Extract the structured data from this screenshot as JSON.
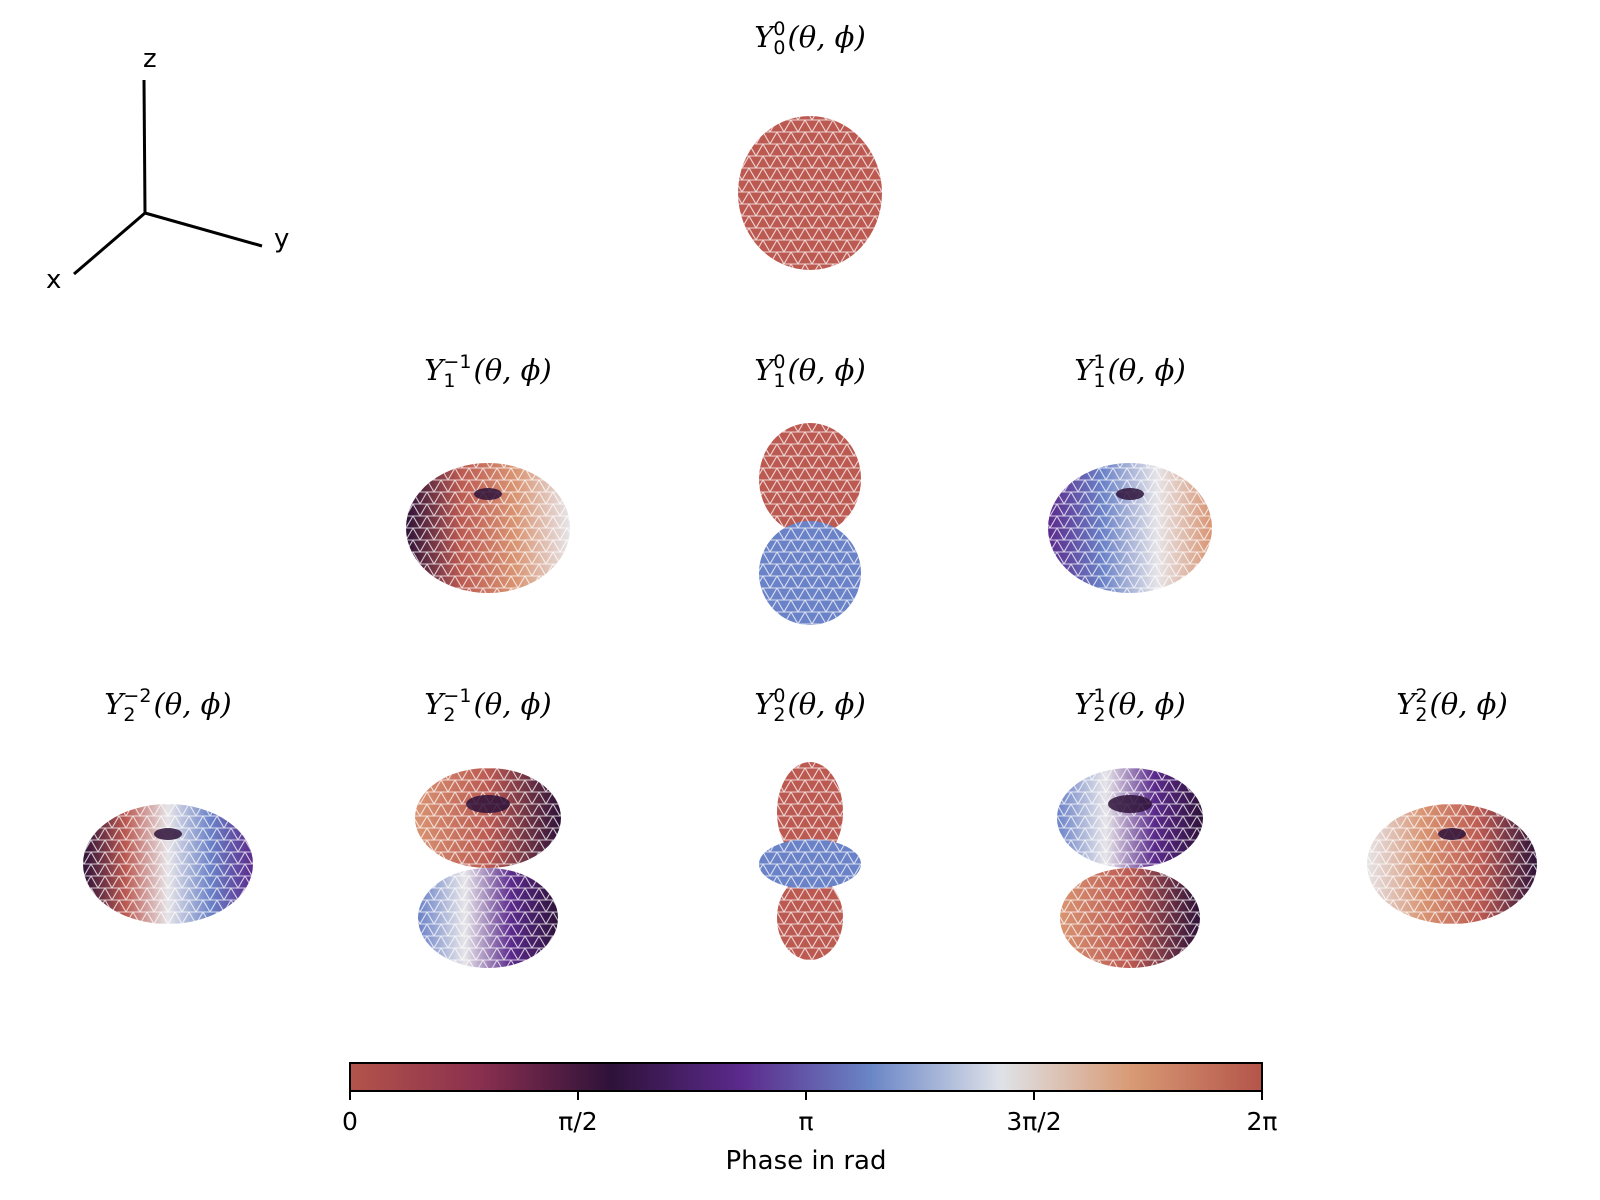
{
  "axes_triad": {
    "x_label": "x",
    "y_label": "y",
    "z_label": "z"
  },
  "harmonics": [
    {
      "id": "l0m0",
      "Y": "Y",
      "sup": "0",
      "sub": "0",
      "args": "(θ, ϕ)",
      "shape": "sphere"
    },
    {
      "id": "l1m-1",
      "Y": "Y",
      "sup": "−1",
      "sub": "1",
      "args": "(θ, ϕ)",
      "shape": "torus"
    },
    {
      "id": "l1m0",
      "Y": "Y",
      "sup": "0",
      "sub": "1",
      "args": "(θ, ϕ)",
      "shape": "dumbbell"
    },
    {
      "id": "l1m1",
      "Y": "Y",
      "sup": "1",
      "sub": "1",
      "args": "(θ, ϕ)",
      "shape": "torus"
    },
    {
      "id": "l2m-2",
      "Y": "Y",
      "sup": "−2",
      "sub": "2",
      "args": "(θ, ϕ)",
      "shape": "torus"
    },
    {
      "id": "l2m-1",
      "Y": "Y",
      "sup": "−1",
      "sub": "2",
      "args": "(θ, ϕ)",
      "shape": "double-torus"
    },
    {
      "id": "l2m0",
      "Y": "Y",
      "sup": "0",
      "sub": "2",
      "args": "(θ, ϕ)",
      "shape": "dz2"
    },
    {
      "id": "l2m1",
      "Y": "Y",
      "sup": "1",
      "sub": "2",
      "args": "(θ, ϕ)",
      "shape": "double-torus"
    },
    {
      "id": "l2m2",
      "Y": "Y",
      "sup": "2",
      "sub": "2",
      "args": "(θ, ϕ)",
      "shape": "torus"
    }
  ],
  "colorbar": {
    "label": "Phase in rad",
    "ticks": [
      "0",
      "π/2",
      "π",
      "3π/2",
      "2π"
    ],
    "colormap": "twilight_shifted",
    "stops": [
      "#b4544a",
      "#8a2f4f",
      "#2e1239",
      "#5b2a8c",
      "#6a86c6",
      "#dfe2e8",
      "#d89a74",
      "#b4544a"
    ]
  },
  "colors": {
    "phase_0": "#bc5a52",
    "phase_pi": "#6a82c8",
    "dark": "#2e1239",
    "purple": "#5b2a8c",
    "light": "#e6e4e8",
    "orange": "#d99472"
  }
}
